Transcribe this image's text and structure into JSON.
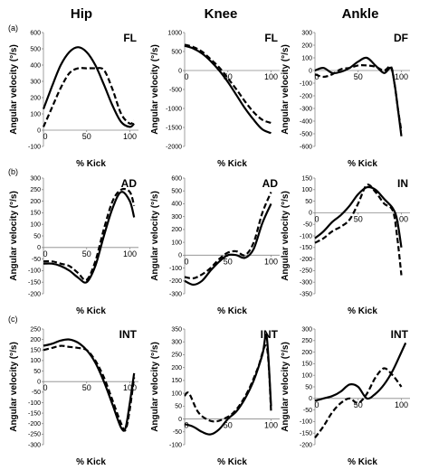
{
  "columns": [
    "Hip",
    "Knee",
    "Ankle"
  ],
  "row_labels": [
    "(a)",
    "(b)",
    "(c)"
  ],
  "chart_data": [
    {
      "type": "line",
      "row": 0,
      "col": 0,
      "panel_label": "FL",
      "ylabel": "Angular velocity (°/s)",
      "xlabel": "% Kick",
      "yticks": [
        -100,
        0,
        100,
        200,
        300,
        400,
        500,
        600
      ],
      "ylim": [
        -100,
        600
      ],
      "xticks": [
        0,
        50,
        100
      ],
      "xlim": [
        0,
        110
      ],
      "series": [
        {
          "style": "solid",
          "x": [
            0,
            10,
            20,
            30,
            40,
            50,
            60,
            70,
            80,
            90,
            100,
            105
          ],
          "y": [
            130,
            270,
            400,
            480,
            510,
            480,
            400,
            280,
            150,
            50,
            20,
            40
          ]
        },
        {
          "style": "dashed",
          "x": [
            0,
            10,
            20,
            30,
            40,
            50,
            60,
            70,
            80,
            90,
            100,
            105
          ],
          "y": [
            20,
            140,
            260,
            350,
            380,
            380,
            380,
            370,
            250,
            100,
            40,
            60
          ]
        }
      ]
    },
    {
      "type": "line",
      "row": 0,
      "col": 1,
      "panel_label": "FL",
      "ylabel": "Angular velocity (°/s)",
      "xlabel": "% Kick",
      "yticks": [
        -2000,
        -1500,
        -1000,
        -500,
        0,
        500,
        1000
      ],
      "ylim": [
        -2000,
        1000
      ],
      "xticks": [
        0,
        50,
        100
      ],
      "xlim": [
        0,
        110
      ],
      "series": [
        {
          "style": "solid",
          "x": [
            0,
            10,
            20,
            30,
            40,
            50,
            60,
            70,
            80,
            90,
            100
          ],
          "y": [
            650,
            580,
            450,
            250,
            0,
            -300,
            -650,
            -1000,
            -1300,
            -1550,
            -1650
          ]
        },
        {
          "style": "dashed",
          "x": [
            0,
            10,
            20,
            30,
            40,
            50,
            60,
            70,
            80,
            90,
            100
          ],
          "y": [
            680,
            620,
            500,
            300,
            80,
            -200,
            -500,
            -820,
            -1100,
            -1300,
            -1380
          ]
        }
      ]
    },
    {
      "type": "line",
      "row": 0,
      "col": 2,
      "panel_label": "DF",
      "ylabel": "Angular velocity (°/s)",
      "xlabel": "% Kick",
      "yticks": [
        -600,
        -500,
        -400,
        -300,
        -200,
        -100,
        0,
        100,
        200,
        300
      ],
      "ylim": [
        -600,
        300
      ],
      "xticks": [
        0,
        50,
        100
      ],
      "xlim": [
        0,
        110
      ],
      "series": [
        {
          "style": "solid",
          "x": [
            0,
            10,
            20,
            30,
            40,
            50,
            60,
            70,
            80,
            88,
            92,
            96,
            100
          ],
          "y": [
            0,
            20,
            -20,
            -10,
            20,
            70,
            100,
            40,
            -20,
            20,
            -100,
            -300,
            -520
          ]
        },
        {
          "style": "dashed",
          "x": [
            0,
            10,
            20,
            30,
            40,
            50,
            60,
            70,
            80,
            88,
            92,
            96,
            100
          ],
          "y": [
            -30,
            -50,
            -30,
            10,
            20,
            40,
            40,
            30,
            0,
            30,
            -100,
            -300,
            -480
          ]
        }
      ]
    },
    {
      "type": "line",
      "row": 1,
      "col": 0,
      "panel_label": "AD",
      "ylabel": "Angular velocity (°/s)",
      "xlabel": "% Kick",
      "yticks": [
        -200,
        -150,
        -100,
        -50,
        0,
        50,
        100,
        150,
        200,
        250,
        300
      ],
      "ylim": [
        -200,
        300
      ],
      "xticks": [
        0,
        50,
        100
      ],
      "xlim": [
        0,
        110
      ],
      "series": [
        {
          "style": "solid",
          "x": [
            0,
            10,
            20,
            30,
            40,
            50,
            60,
            70,
            80,
            90,
            100,
            105
          ],
          "y": [
            -70,
            -70,
            -80,
            -100,
            -130,
            -150,
            -80,
            50,
            170,
            240,
            200,
            130
          ]
        },
        {
          "style": "dashed",
          "x": [
            0,
            10,
            20,
            30,
            40,
            50,
            60,
            70,
            80,
            90,
            100,
            105
          ],
          "y": [
            -60,
            -60,
            -70,
            -80,
            -110,
            -140,
            -60,
            80,
            200,
            250,
            240,
            180
          ]
        }
      ]
    },
    {
      "type": "line",
      "row": 1,
      "col": 1,
      "panel_label": "AD",
      "ylabel": "Angular velocity (°/s)",
      "xlabel": "% Kick",
      "yticks": [
        -300,
        -200,
        -100,
        0,
        100,
        200,
        300,
        400,
        500,
        600
      ],
      "ylim": [
        -300,
        600
      ],
      "xticks": [
        0,
        50,
        100
      ],
      "xlim": [
        0,
        110
      ],
      "series": [
        {
          "style": "solid",
          "x": [
            0,
            10,
            20,
            30,
            40,
            50,
            60,
            70,
            80,
            90,
            100
          ],
          "y": [
            -200,
            -230,
            -200,
            -120,
            -50,
            0,
            0,
            -20,
            50,
            250,
            400
          ]
        },
        {
          "style": "dashed",
          "x": [
            0,
            10,
            20,
            30,
            40,
            50,
            60,
            70,
            80,
            90,
            100
          ],
          "y": [
            -170,
            -180,
            -150,
            -100,
            -30,
            20,
            30,
            0,
            100,
            330,
            490
          ]
        }
      ]
    },
    {
      "type": "line",
      "row": 1,
      "col": 2,
      "panel_label": "IN",
      "ylabel": "Angular velocity (°/s)",
      "xlabel": "% Kick",
      "yticks": [
        -350,
        -300,
        -250,
        -200,
        -150,
        -100,
        -50,
        0,
        50,
        100,
        150
      ],
      "ylim": [
        -350,
        150
      ],
      "xticks": [
        0,
        50,
        100
      ],
      "xlim": [
        0,
        110
      ],
      "series": [
        {
          "style": "solid",
          "x": [
            0,
            10,
            20,
            30,
            40,
            50,
            60,
            70,
            80,
            90,
            95,
            100
          ],
          "y": [
            -110,
            -80,
            -40,
            -10,
            30,
            80,
            110,
            100,
            60,
            20,
            -30,
            -150
          ]
        },
        {
          "style": "dashed",
          "x": [
            0,
            10,
            20,
            30,
            40,
            50,
            60,
            70,
            80,
            90,
            95,
            100
          ],
          "y": [
            -130,
            -110,
            -80,
            -60,
            -30,
            40,
            120,
            90,
            40,
            10,
            -100,
            -270
          ]
        }
      ]
    },
    {
      "type": "line",
      "row": 2,
      "col": 0,
      "panel_label": "INT",
      "ylabel": "Angular velocity (°/s)",
      "xlabel": "% Kick",
      "yticks": [
        -300,
        -250,
        -200,
        -150,
        -100,
        -50,
        0,
        50,
        100,
        150,
        200,
        250
      ],
      "ylim": [
        -300,
        250
      ],
      "xticks": [
        0,
        50,
        100
      ],
      "xlim": [
        0,
        110
      ],
      "series": [
        {
          "style": "solid",
          "x": [
            0,
            10,
            20,
            30,
            40,
            50,
            60,
            70,
            80,
            90,
            95,
            100,
            105
          ],
          "y": [
            170,
            180,
            195,
            200,
            185,
            150,
            90,
            0,
            -110,
            -220,
            -220,
            -100,
            40
          ]
        },
        {
          "style": "dashed",
          "x": [
            0,
            10,
            20,
            30,
            40,
            50,
            60,
            70,
            80,
            90,
            95,
            100,
            105
          ],
          "y": [
            150,
            160,
            170,
            165,
            160,
            150,
            100,
            20,
            -90,
            -200,
            -230,
            -130,
            20
          ]
        }
      ]
    },
    {
      "type": "line",
      "row": 2,
      "col": 1,
      "panel_label": "INT",
      "ylabel": "Angular velocity (°/s)",
      "xlabel": "% Kick",
      "yticks": [
        -100,
        -50,
        0,
        50,
        100,
        150,
        200,
        250,
        300,
        350
      ],
      "ylim": [
        -100,
        350
      ],
      "xticks": [
        0,
        50,
        100
      ],
      "xlim": [
        0,
        110
      ],
      "series": [
        {
          "style": "solid",
          "x": [
            0,
            10,
            20,
            30,
            40,
            50,
            60,
            70,
            80,
            90,
            95,
            100
          ],
          "y": [
            -20,
            -30,
            -50,
            -60,
            -40,
            0,
            30,
            80,
            150,
            250,
            320,
            50
          ]
        },
        {
          "style": "dashed",
          "x": [
            0,
            5,
            15,
            25,
            35,
            45,
            55,
            65,
            75,
            85,
            95,
            100
          ],
          "y": [
            90,
            100,
            30,
            0,
            -10,
            0,
            20,
            60,
            120,
            200,
            280,
            30
          ]
        }
      ]
    },
    {
      "type": "line",
      "row": 2,
      "col": 2,
      "panel_label": "INT",
      "ylabel": "Angular velocity (°/s)",
      "xlabel": "% Kick",
      "yticks": [
        -200,
        -150,
        -100,
        -50,
        0,
        50,
        100,
        150,
        200,
        250,
        300
      ],
      "ylim": [
        -200,
        300
      ],
      "xticks": [
        0,
        50,
        100
      ],
      "xlim": [
        0,
        110
      ],
      "series": [
        {
          "style": "solid",
          "x": [
            0,
            10,
            20,
            30,
            40,
            50,
            60,
            70,
            80,
            90,
            100,
            105
          ],
          "y": [
            -10,
            0,
            10,
            30,
            60,
            50,
            0,
            20,
            60,
            120,
            200,
            240
          ]
        },
        {
          "style": "dashed",
          "x": [
            0,
            10,
            20,
            30,
            40,
            50,
            60,
            70,
            80,
            90,
            100
          ],
          "y": [
            -170,
            -120,
            -60,
            -20,
            0,
            -20,
            20,
            90,
            130,
            100,
            50
          ]
        }
      ]
    }
  ]
}
